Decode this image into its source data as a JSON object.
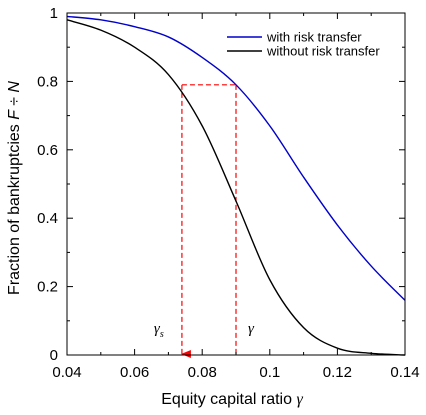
{
  "chart_data": {
    "type": "line",
    "xlabel": "Equity capital ratio",
    "xlabel_symbol": "γ",
    "ylabel": "Fraction of bankruptcies",
    "ylabel_symbol": "F ÷ N",
    "xlim": [
      0.04,
      0.14
    ],
    "ylim": [
      0,
      1
    ],
    "xticks": [
      0.04,
      0.06,
      0.08,
      0.1,
      0.12,
      0.14
    ],
    "xtick_labels": [
      "0.04",
      "0.06",
      "0.08",
      "0.1",
      "0.12",
      "0.14"
    ],
    "yticks": [
      0,
      0.2,
      0.4,
      0.6,
      0.8,
      1
    ],
    "ytick_labels": [
      "0",
      "0.2",
      "0.4",
      "0.6",
      "0.8",
      "1"
    ],
    "grid": false,
    "legend_position": "top-right",
    "series": [
      {
        "name": "with risk transfer",
        "color": "#0000cc",
        "x": [
          0.04,
          0.05,
          0.06,
          0.07,
          0.08,
          0.09,
          0.1,
          0.11,
          0.12,
          0.13,
          0.14
        ],
        "y": [
          0.99,
          0.98,
          0.96,
          0.93,
          0.87,
          0.79,
          0.67,
          0.52,
          0.38,
          0.26,
          0.16
        ]
      },
      {
        "name": "without risk transfer",
        "color": "#000000",
        "x": [
          0.04,
          0.05,
          0.06,
          0.07,
          0.08,
          0.09,
          0.1,
          0.11,
          0.12,
          0.13,
          0.14
        ],
        "y": [
          0.98,
          0.95,
          0.9,
          0.82,
          0.67,
          0.45,
          0.22,
          0.08,
          0.02,
          0.005,
          0.0
        ]
      }
    ],
    "annotations": [
      {
        "label": "γ",
        "subscript": "s",
        "x": 0.074
      },
      {
        "label": "γ",
        "subscript": "",
        "x": 0.09
      }
    ],
    "reference_lines": {
      "color": "#ff0000",
      "gamma_s": 0.074,
      "gamma": 0.09,
      "level": 0.79
    }
  }
}
